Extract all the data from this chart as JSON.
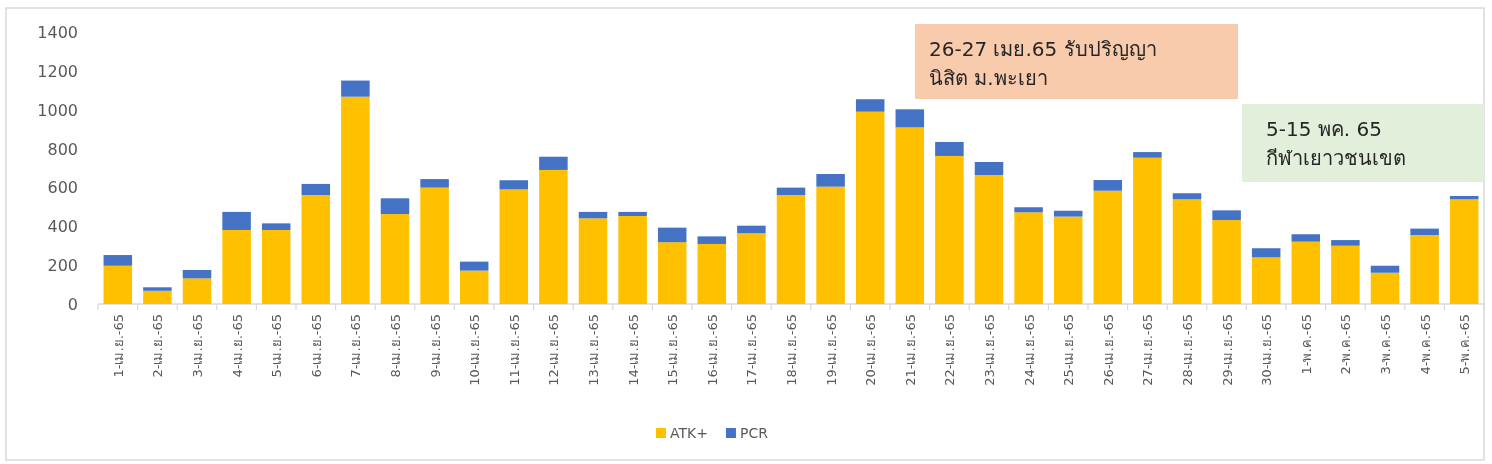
{
  "chart_data": {
    "type": "bar",
    "stacked": true,
    "categories": [
      "1-เม.ย.-65",
      "2-เม.ย.-65",
      "3-เม.ย.-65",
      "4-เม.ย.-65",
      "5-เม.ย.-65",
      "6-เม.ย.-65",
      "7-เม.ย.-65",
      "8-เม.ย.-65",
      "9-เม.ย.-65",
      "10-เม.ย.-65",
      "11-เม.ย.-65",
      "12-เม.ย.-65",
      "13-เม.ย.-65",
      "14-เม.ย.-65",
      "15-เม.ย.-65",
      "16-เม.ย.-65",
      "17-เม.ย.-65",
      "18-เม.ย.-65",
      "19-เม.ย.-65",
      "20-เม.ย.-65",
      "21-เม.ย.-65",
      "22-เม.ย.-65",
      "23-เม.ย.-65",
      "24-เม.ย.-65",
      "25-เม.ย.-65",
      "26-เม.ย.-65",
      "27-เม.ย.-65",
      "28-เม.ย.-65",
      "29-เม.ย.-65",
      "30-เม.ย.-65",
      "1-พ.ค.-65",
      "2-พ.ค.-65",
      "3-พ.ค.-65",
      "4-พ.ค.-65",
      "5-พ.ค.-65"
    ],
    "series": [
      {
        "name": "ATK+",
        "color": "#ffc000",
        "values": [
          197,
          68,
          132,
          381,
          381,
          561,
          1067,
          463,
          599,
          172,
          590,
          690,
          441,
          453,
          318,
          309,
          364,
          561,
          604,
          990,
          909,
          762,
          664,
          472,
          450,
          583,
          753,
          539,
          432,
          240,
          321,
          300,
          161,
          355,
          539
        ]
      },
      {
        "name": "PCR",
        "color": "#4472c4",
        "values": [
          55,
          18,
          43,
          93,
          34,
          57,
          83,
          81,
          44,
          46,
          47,
          68,
          33,
          21,
          75,
          39,
          39,
          38,
          65,
          64,
          93,
          72,
          67,
          26,
          30,
          55,
          29,
          31,
          50,
          47,
          38,
          29,
          36,
          33,
          17
        ]
      }
    ],
    "ylim": [
      0,
      1400
    ],
    "yticks": [
      0,
      200,
      400,
      600,
      800,
      1000,
      1200,
      1400
    ],
    "legend": "bottom",
    "annotations": [
      "26-27 เมย.65 รับปริญญา\nนิสิต ม.พะเยา",
      "5-15 พค. 65\nกีฬาเยาวชนเขต"
    ]
  }
}
